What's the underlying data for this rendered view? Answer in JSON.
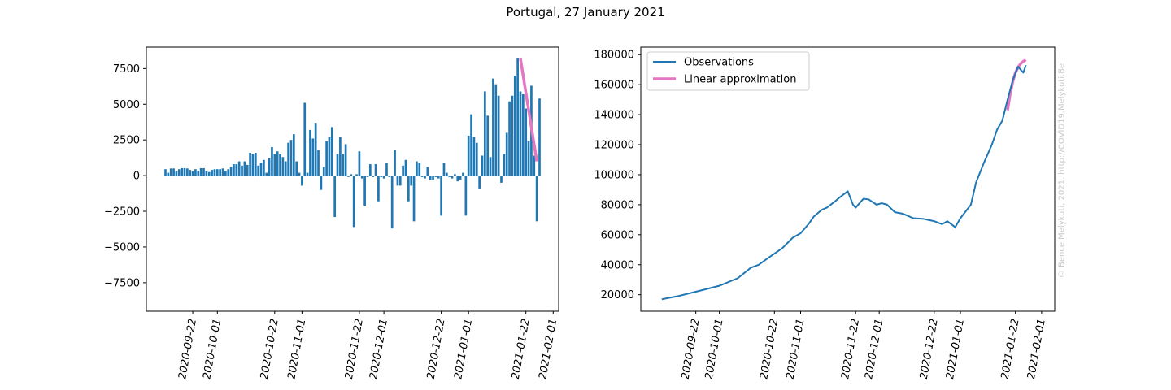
{
  "title": "Portugal, 27 January 2021",
  "watermark": "© Bence Melykuti, 2021. http://COVID19.Melykuti.Be",
  "colors": {
    "observations": "#1f77b4",
    "approximation": "#e377c2",
    "watermark": "#c8c8c8"
  },
  "chart_data": [
    {
      "type": "bar",
      "x_tick_labels": [
        "2020-09-22",
        "2020-10-01",
        "2020-10-22",
        "2020-11-01",
        "2020-11-22",
        "2020-12-01",
        "2020-12-22",
        "2021-01-01",
        "2021-01-22",
        "2021-02-01"
      ],
      "y_ticks": [
        -7500,
        -5000,
        -2500,
        0,
        2500,
        5000,
        7500
      ],
      "y_tick_labels": [
        "−7500",
        "−5000",
        "−2500",
        "0",
        "2500",
        "5000",
        "7500"
      ],
      "ylim": [
        -9500,
        9000
      ],
      "xlim": [
        "2020-09-05",
        "2021-02-03"
      ],
      "x_start": "2020-09-12",
      "values": [
        450,
        200,
        500,
        500,
        300,
        450,
        520,
        520,
        500,
        400,
        300,
        450,
        350,
        520,
        520,
        300,
        250,
        400,
        450,
        450,
        450,
        500,
        350,
        450,
        600,
        800,
        800,
        1000,
        700,
        1000,
        750,
        1600,
        1500,
        1600,
        700,
        900,
        1100,
        200,
        1200,
        2000,
        1500,
        1700,
        1500,
        1300,
        1000,
        2300,
        2500,
        2900,
        1000,
        200,
        -700,
        5100,
        200,
        3200,
        2600,
        3700,
        1800,
        -1000,
        600,
        2400,
        2700,
        3400,
        -2900,
        1500,
        2700,
        1500,
        2200,
        -100,
        100,
        -3600,
        100,
        1700,
        -200,
        -2100,
        -100,
        800,
        -100,
        800,
        -1800,
        -100,
        -200,
        900,
        -100,
        -3700,
        1800,
        -700,
        -700,
        700,
        1100,
        -1800,
        -700,
        -3200,
        1000,
        900,
        -100,
        -200,
        600,
        -300,
        -300,
        -100,
        -200,
        -2800,
        900,
        200,
        -100,
        -200,
        100,
        -400,
        -300,
        200,
        -2800,
        2800,
        4300,
        2700,
        2300,
        -900,
        1400,
        5900,
        4200,
        1300,
        6800,
        6400,
        5600,
        -500,
        1500,
        3000,
        5200,
        5600,
        7000,
        8200,
        5900,
        5700,
        4700,
        2400,
        6300,
        1400,
        -3200,
        5400
      ],
      "approximation": {
        "x": [
          "2021-01-20",
          "2021-01-26"
        ],
        "y": [
          8200,
          1000
        ]
      }
    },
    {
      "type": "line",
      "x_tick_labels": [
        "2020-09-22",
        "2020-10-01",
        "2020-10-22",
        "2020-11-01",
        "2020-11-22",
        "2020-12-01",
        "2020-12-22",
        "2021-01-01",
        "2021-01-22",
        "2021-02-01"
      ],
      "y_ticks": [
        20000,
        40000,
        60000,
        80000,
        100000,
        120000,
        140000,
        160000,
        180000
      ],
      "y_tick_labels": [
        "20000",
        "40000",
        "60000",
        "80000",
        "100000",
        "120000",
        "140000",
        "160000",
        "180000"
      ],
      "ylim": [
        9000,
        185000
      ],
      "xlim": [
        "2020-09-01",
        "2021-02-06"
      ],
      "legend_location": "upper left",
      "series": [
        {
          "name": "Observations",
          "x": [
            "2020-09-09",
            "2020-09-15",
            "2020-09-22",
            "2020-10-01",
            "2020-10-08",
            "2020-10-13",
            "2020-10-16",
            "2020-10-20",
            "2020-10-25",
            "2020-10-29",
            "2020-11-01",
            "2020-11-04",
            "2020-11-06",
            "2020-11-09",
            "2020-11-11",
            "2020-11-14",
            "2020-11-16",
            "2020-11-19",
            "2020-11-21",
            "2020-11-22",
            "2020-11-24",
            "2020-11-25",
            "2020-11-27",
            "2020-11-30",
            "2020-12-02",
            "2020-12-04",
            "2020-12-07",
            "2020-12-10",
            "2020-12-14",
            "2020-12-18",
            "2020-12-22",
            "2020-12-25",
            "2020-12-27",
            "2020-12-30",
            "2021-01-01",
            "2021-01-05",
            "2021-01-07",
            "2021-01-10",
            "2021-01-13",
            "2021-01-15",
            "2021-01-17",
            "2021-01-19",
            "2021-01-21",
            "2021-01-23",
            "2021-01-25",
            "2021-01-26"
          ],
          "y": [
            17000,
            19000,
            22000,
            26000,
            31000,
            38000,
            40000,
            45000,
            51000,
            58000,
            61000,
            67000,
            72000,
            76500,
            78000,
            82000,
            85000,
            89000,
            80000,
            78000,
            82000,
            84000,
            83500,
            80000,
            81000,
            80000,
            75000,
            74000,
            71000,
            70500,
            69000,
            67000,
            69000,
            65000,
            71000,
            80000,
            95000,
            108000,
            120000,
            130000,
            136000,
            150000,
            163000,
            172000,
            168000,
            173000
          ]
        },
        {
          "name": "Linear approximation",
          "x": [
            "2021-01-19",
            "2021-01-20",
            "2021-01-21",
            "2021-01-22",
            "2021-01-23",
            "2021-01-24",
            "2021-01-25",
            "2021-01-26"
          ],
          "y": [
            143000,
            154000,
            162000,
            168000,
            171500,
            174000,
            175500,
            176500
          ]
        }
      ]
    }
  ]
}
